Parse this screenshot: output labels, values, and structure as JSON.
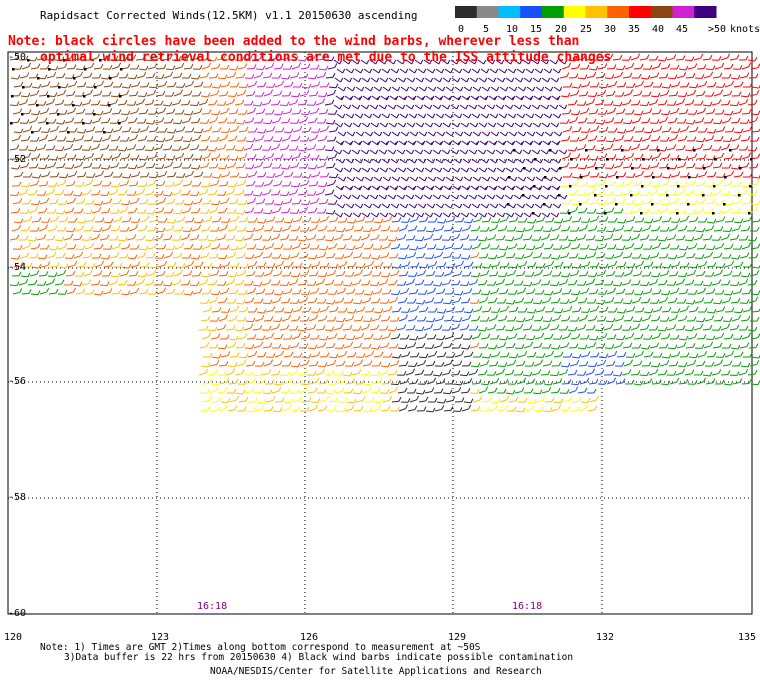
{
  "title": "Rapidsact Corrected Winds(12.5KM) v1.1 20150630 ascending",
  "note_line1": "Note: black circles have been added to the wind barbs, wherever less than",
  "note_line2": "optimal wind retrieval conditions are met due to the ISS attitude changes",
  "legend": {
    "unit": "knots",
    "labels": [
      "0",
      "5",
      "10",
      "15",
      "20",
      "25",
      "30",
      "35",
      "40",
      "45",
      ">50"
    ],
    "colors": [
      "#2b2b2b",
      "#8a8a8a",
      "#00bfff",
      "#1a4fff",
      "#00a000",
      "#ffff00",
      "#ffc000",
      "#ff6000",
      "#ff0000",
      "#8b4513",
      "#d020d0",
      "#400080"
    ]
  },
  "lat_labels": [
    "-50",
    "-52",
    "-54",
    "-56",
    "-58",
    "-60"
  ],
  "lon_labels": [
    "120",
    "123",
    "126",
    "129",
    "132",
    "135"
  ],
  "time_labels": [
    "16:18",
    "16:18"
  ],
  "footnote_line1": "Note: 1) Times are GMT 2)Times along bottom correspond to measurement at ~50S",
  "footnote_line2": "3)Data buffer is 22 hrs from 20150630 4) Black wind barbs indicate possible contamination",
  "credit": "NOAA/NESDIS/Center for Satellite Applications and Research"
}
